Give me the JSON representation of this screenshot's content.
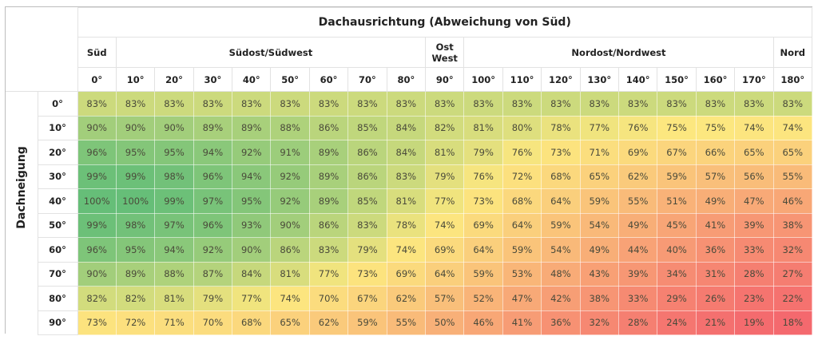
{
  "chart_data": {
    "type": "heatmap",
    "title": "Dachausrichtung (Abweichung von Süd)",
    "ylabel": "Dachneigung",
    "column_groups": [
      {
        "label": "Süd",
        "span": 1
      },
      {
        "label": "Südost/Südwest",
        "span": 8
      },
      {
        "label": "Ost West",
        "span": 1
      },
      {
        "label": "Nordost/Nordwest",
        "span": 8
      },
      {
        "label": "Nord",
        "span": 1
      }
    ],
    "columns": [
      "0°",
      "10°",
      "20°",
      "30°",
      "40°",
      "50°",
      "60°",
      "70°",
      "80°",
      "90°",
      "100°",
      "110°",
      "120°",
      "130°",
      "140°",
      "150°",
      "160°",
      "170°",
      "180°"
    ],
    "rows": [
      "0°",
      "10°",
      "20°",
      "30°",
      "40°",
      "50°",
      "60°",
      "70°",
      "80°",
      "90°"
    ],
    "values": [
      [
        83,
        83,
        83,
        83,
        83,
        83,
        83,
        83,
        83,
        83,
        83,
        83,
        83,
        83,
        83,
        83,
        83,
        83,
        83
      ],
      [
        90,
        90,
        90,
        89,
        89,
        88,
        86,
        85,
        84,
        82,
        81,
        80,
        78,
        77,
        76,
        75,
        75,
        74,
        74
      ],
      [
        96,
        95,
        95,
        94,
        92,
        91,
        89,
        86,
        84,
        81,
        79,
        76,
        73,
        71,
        69,
        67,
        66,
        65,
        65
      ],
      [
        99,
        99,
        98,
        96,
        94,
        92,
        89,
        86,
        83,
        79,
        76,
        72,
        68,
        65,
        62,
        59,
        57,
        56,
        55
      ],
      [
        100,
        100,
        99,
        97,
        95,
        92,
        89,
        85,
        81,
        77,
        73,
        68,
        64,
        59,
        55,
        51,
        49,
        47,
        46
      ],
      [
        99,
        98,
        97,
        96,
        93,
        90,
        86,
        83,
        78,
        74,
        69,
        64,
        59,
        54,
        49,
        45,
        41,
        39,
        38
      ],
      [
        96,
        95,
        94,
        92,
        90,
        86,
        83,
        79,
        74,
        69,
        64,
        59,
        54,
        49,
        44,
        40,
        36,
        33,
        32
      ],
      [
        90,
        89,
        88,
        87,
        84,
        81,
        77,
        73,
        69,
        64,
        59,
        53,
        48,
        43,
        39,
        34,
        31,
        28,
        27
      ],
      [
        82,
        82,
        81,
        79,
        77,
        74,
        70,
        67,
        62,
        57,
        52,
        47,
        42,
        38,
        33,
        29,
        26,
        23,
        22
      ],
      [
        73,
        72,
        71,
        70,
        68,
        65,
        62,
        59,
        55,
        50,
        46,
        41,
        36,
        32,
        28,
        24,
        21,
        19,
        18
      ]
    ],
    "unit": "%",
    "color_scale": {
      "low": "#f4696e",
      "mid": "#fce77f",
      "high": "#66be78"
    }
  }
}
